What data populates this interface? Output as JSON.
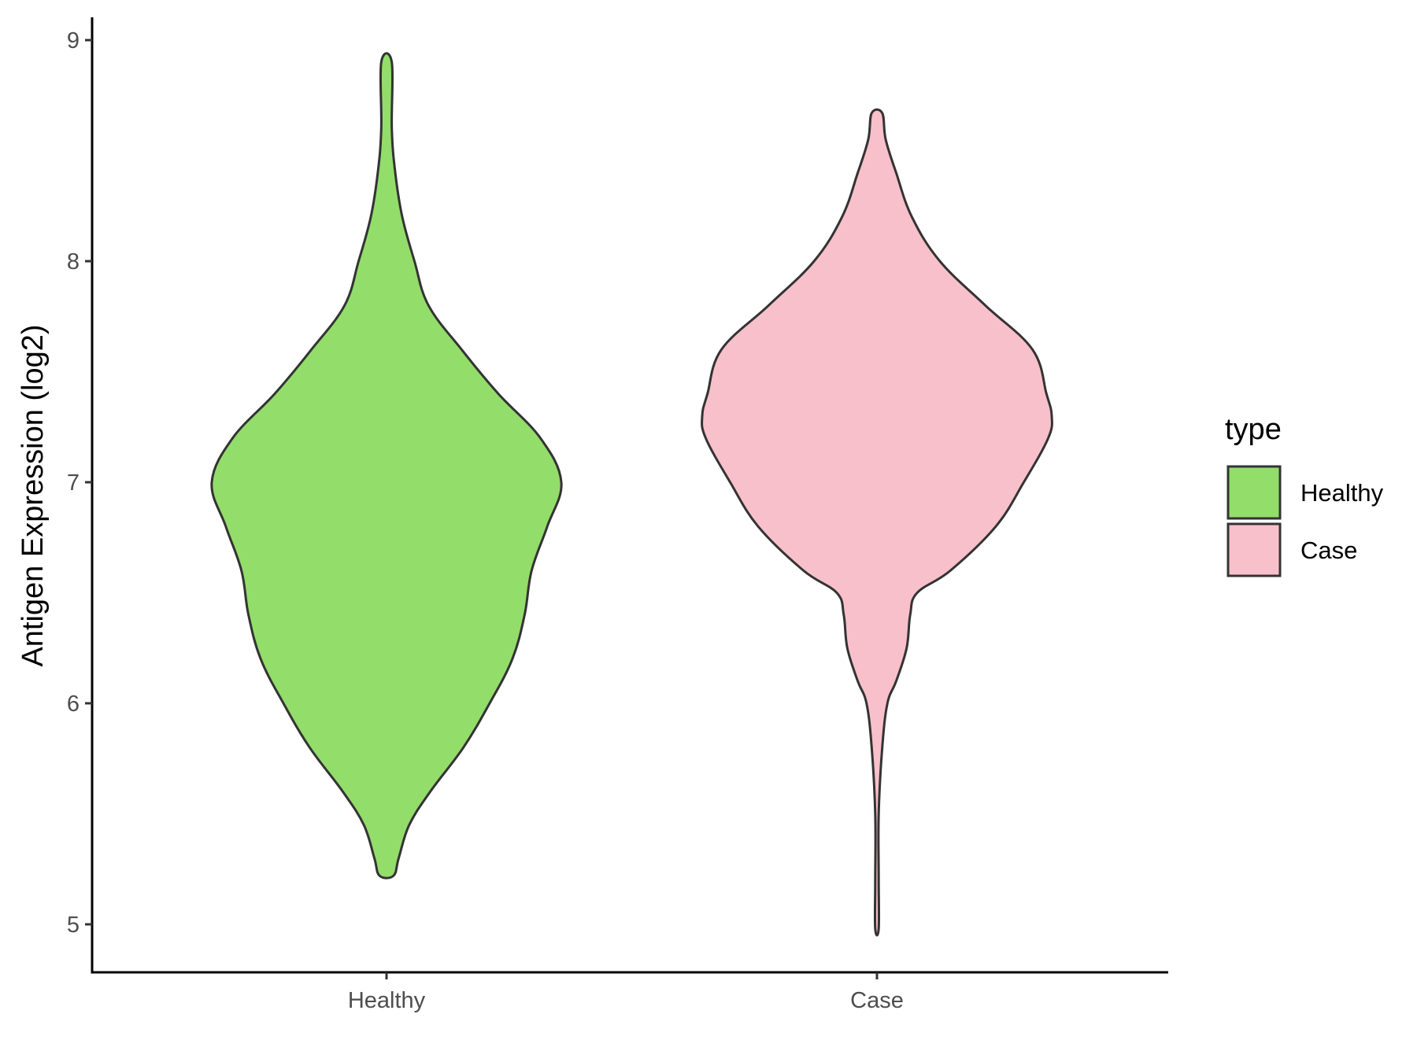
{
  "chart_data": {
    "type": "violin",
    "title": "",
    "xlabel": "",
    "ylabel": "Antigen Expression (log2)",
    "ylim": [
      4.8,
      9.1
    ],
    "yticks": [
      "5",
      "6",
      "7",
      "8",
      "9"
    ],
    "categories": [
      "Healthy",
      "Case"
    ],
    "grid": false,
    "legend": {
      "title": "type",
      "position": "right",
      "entries": [
        {
          "label": "Healthy",
          "color": "#93dd6b"
        },
        {
          "label": "Case",
          "color": "#f8c0cb"
        }
      ]
    },
    "series": [
      {
        "category": "Healthy",
        "color": "#93dd6b",
        "min": 5.22,
        "max": 8.9,
        "density_profile": [
          [
            5.22,
            0.04
          ],
          [
            5.3,
            0.07
          ],
          [
            5.45,
            0.13
          ],
          [
            5.6,
            0.25
          ],
          [
            5.8,
            0.44
          ],
          [
            6.0,
            0.59
          ],
          [
            6.2,
            0.72
          ],
          [
            6.4,
            0.79
          ],
          [
            6.6,
            0.83
          ],
          [
            6.8,
            0.92
          ],
          [
            7.0,
            1.0
          ],
          [
            7.2,
            0.88
          ],
          [
            7.4,
            0.64
          ],
          [
            7.6,
            0.43
          ],
          [
            7.8,
            0.24
          ],
          [
            8.0,
            0.16
          ],
          [
            8.2,
            0.09
          ],
          [
            8.4,
            0.05
          ],
          [
            8.6,
            0.03
          ],
          [
            8.9,
            0.03
          ]
        ]
      },
      {
        "category": "Case",
        "color": "#f8c0cb",
        "min": 4.98,
        "max": 8.67,
        "density_profile": [
          [
            4.98,
            0.01
          ],
          [
            5.2,
            0.01
          ],
          [
            5.5,
            0.01
          ],
          [
            5.8,
            0.03
          ],
          [
            6.0,
            0.06
          ],
          [
            6.1,
            0.11
          ],
          [
            6.25,
            0.17
          ],
          [
            6.4,
            0.19
          ],
          [
            6.5,
            0.23
          ],
          [
            6.6,
            0.42
          ],
          [
            6.8,
            0.68
          ],
          [
            7.0,
            0.84
          ],
          [
            7.2,
            0.98
          ],
          [
            7.3,
            1.0
          ],
          [
            7.4,
            0.97
          ],
          [
            7.6,
            0.89
          ],
          [
            7.8,
            0.62
          ],
          [
            8.0,
            0.36
          ],
          [
            8.2,
            0.2
          ],
          [
            8.4,
            0.11
          ],
          [
            8.55,
            0.05
          ],
          [
            8.67,
            0.03
          ]
        ]
      }
    ]
  }
}
